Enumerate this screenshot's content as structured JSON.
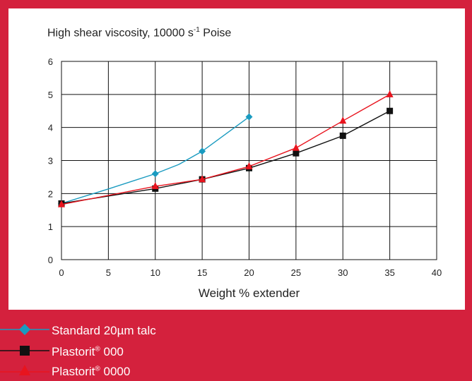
{
  "chart_data": {
    "type": "line",
    "title": "High shear viscosity, 10000 s",
    "title_sup": "-1",
    "title_suffix": " Poise",
    "xlabel": "Weight % extender",
    "ylabel": "",
    "xlim": [
      0,
      40
    ],
    "ylim": [
      0,
      6
    ],
    "xticks": [
      0,
      5,
      10,
      15,
      20,
      25,
      30,
      35,
      40
    ],
    "yticks": [
      0,
      1,
      2,
      3,
      4,
      5,
      6
    ],
    "grid": true,
    "legend_position": "bottom",
    "series": [
      {
        "name": "Standard 20µm talc",
        "marker": "diamond",
        "color": "#1a9bc0",
        "x": [
          0,
          10,
          15,
          20
        ],
        "y": [
          1.7,
          2.6,
          3.28,
          4.32
        ],
        "curve_x": [
          0,
          5,
          10,
          12.5,
          15,
          17.5,
          20
        ],
        "curve_y": [
          1.7,
          2.14,
          2.6,
          2.88,
          3.28,
          3.8,
          4.32
        ]
      },
      {
        "name": "Plastorit",
        "name_sup": "®",
        "name_suffix": " 000",
        "marker": "square",
        "color": "#111111",
        "x": [
          0,
          10,
          15,
          20,
          25,
          30,
          35
        ],
        "y": [
          1.7,
          2.15,
          2.43,
          2.77,
          3.22,
          3.75,
          4.5
        ]
      },
      {
        "name": "Plastorit",
        "name_sup": "®",
        "name_suffix": " 0000",
        "marker": "triangle",
        "color": "#e8141e",
        "x": [
          0,
          10,
          15,
          20,
          25,
          30,
          35
        ],
        "y": [
          1.67,
          2.22,
          2.43,
          2.82,
          3.38,
          4.2,
          5.0
        ]
      }
    ]
  },
  "colors": {
    "background": "#d4213d",
    "panel": "#ffffff",
    "legend_text": "#ffffff"
  }
}
